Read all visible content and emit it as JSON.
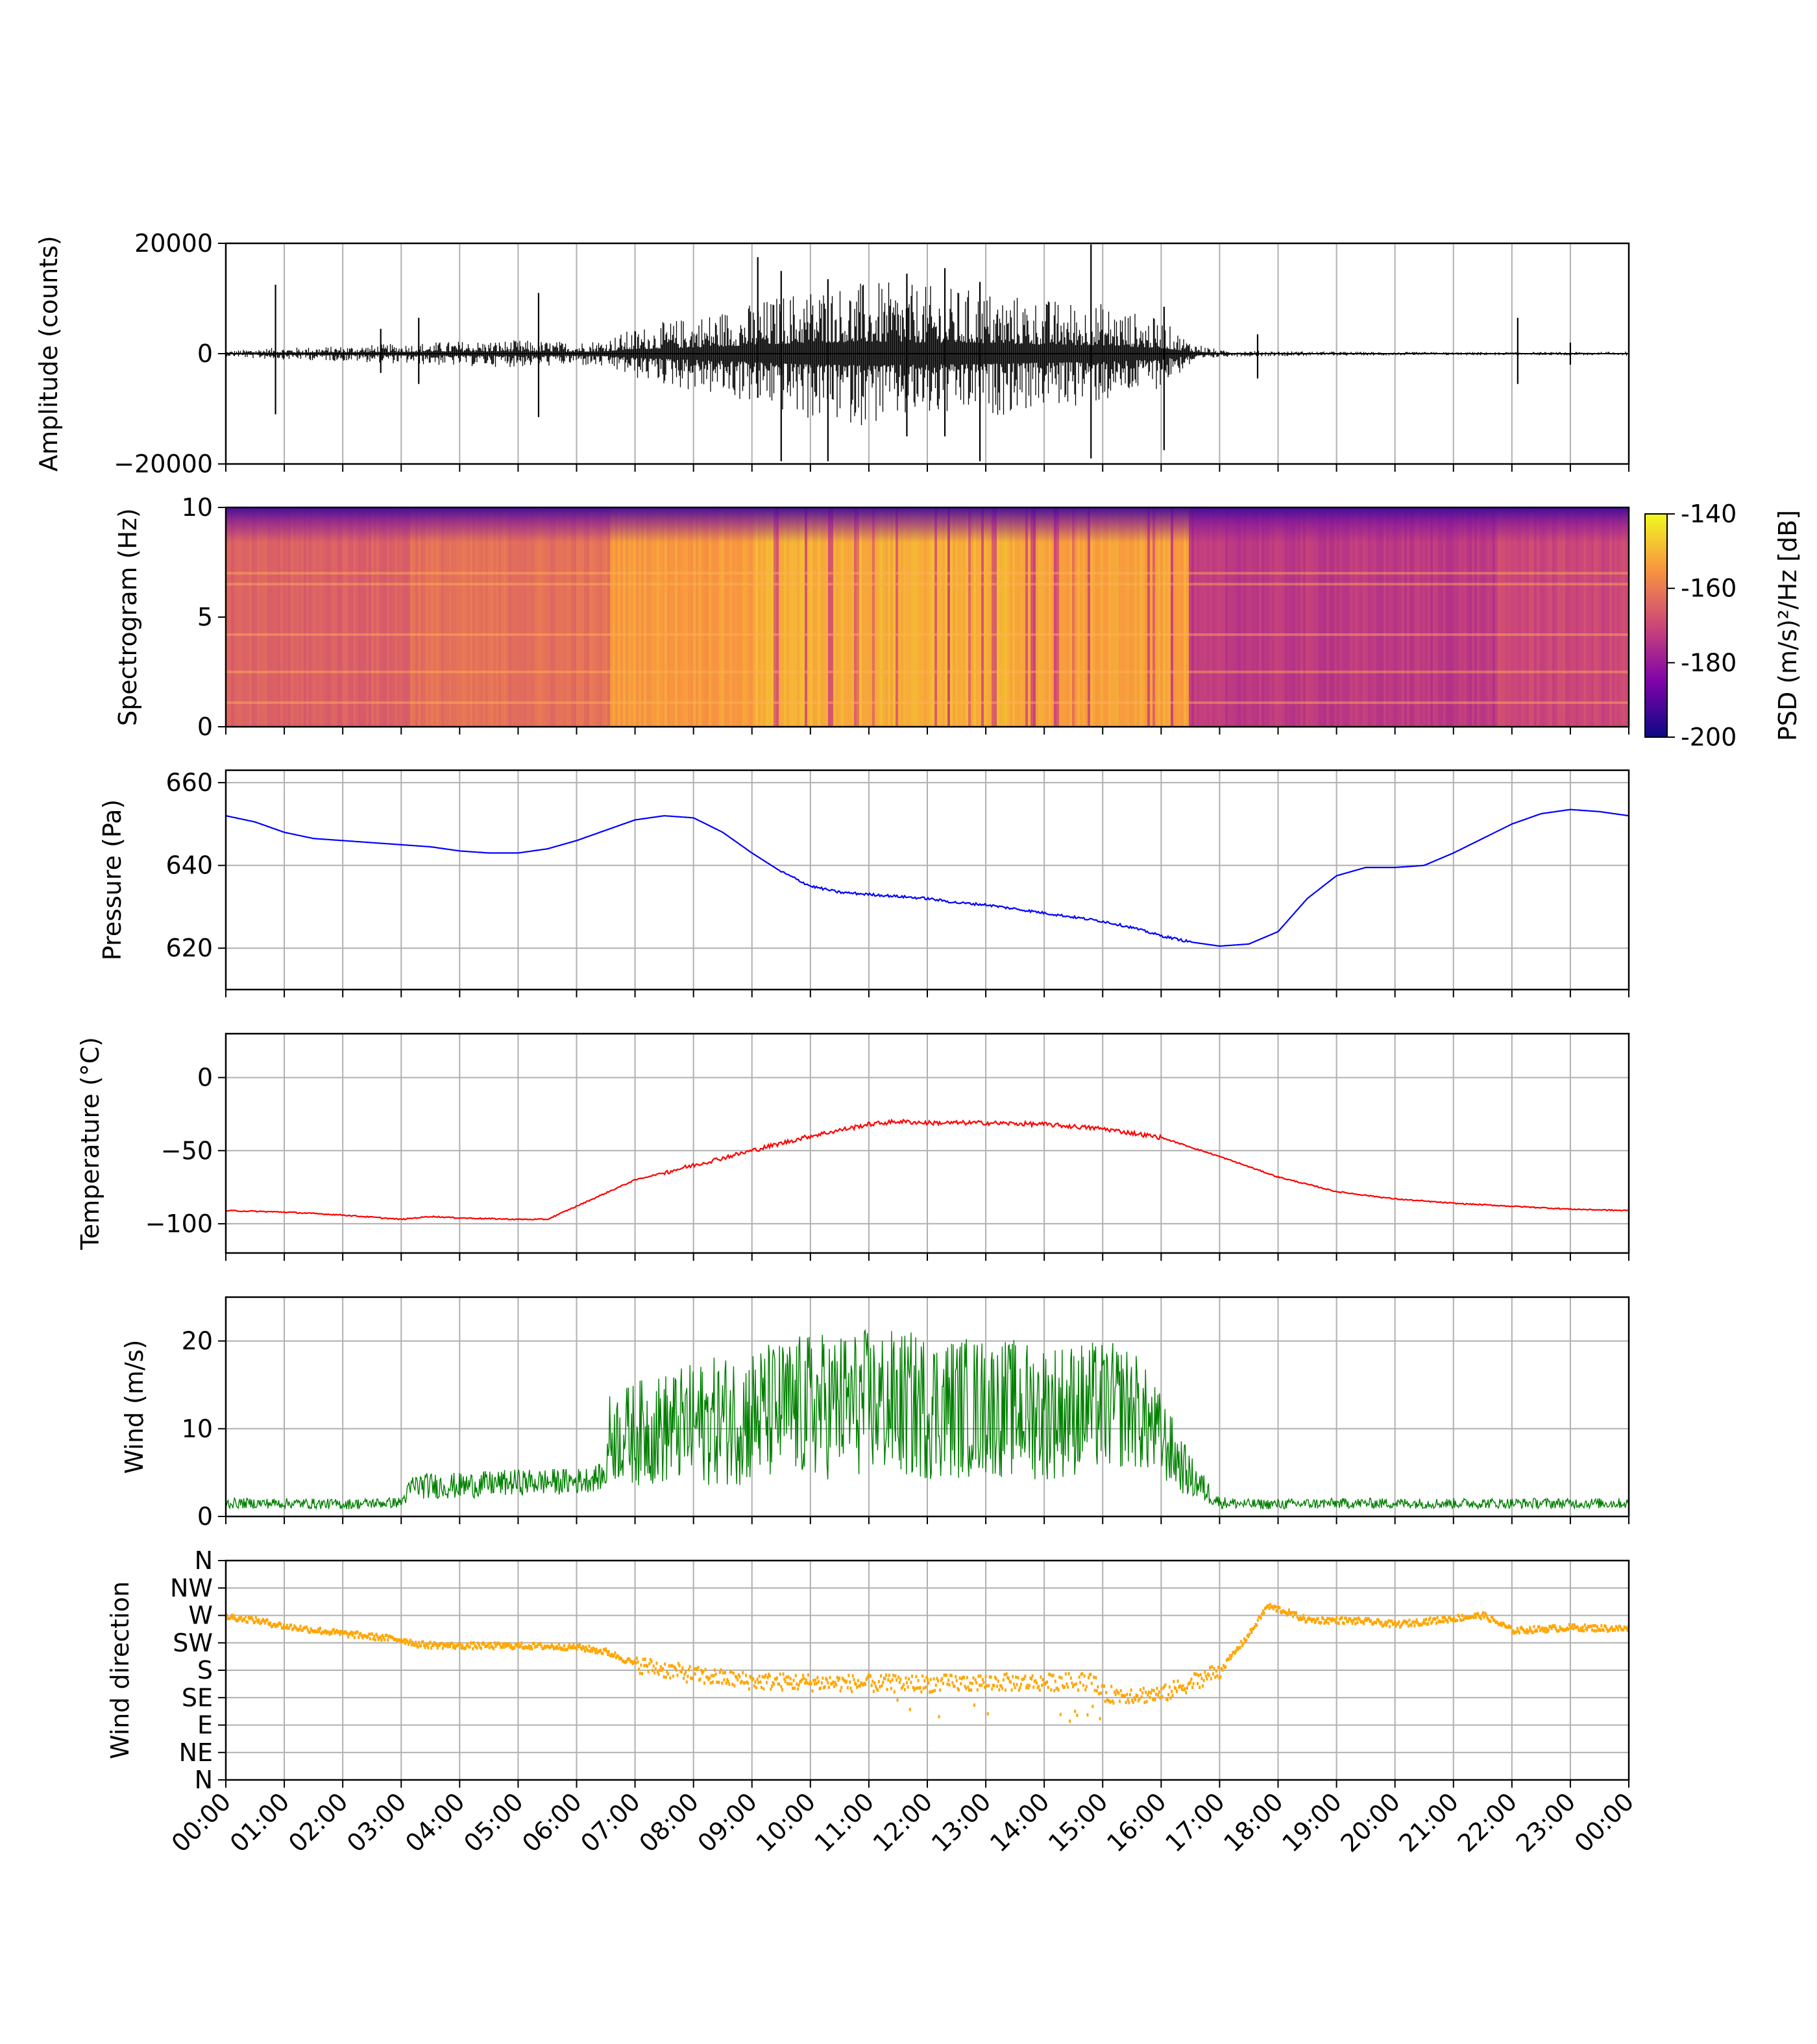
{
  "x_ticks": [
    "00:00",
    "01:00",
    "02:00",
    "03:00",
    "04:00",
    "05:00",
    "06:00",
    "07:00",
    "08:00",
    "09:00",
    "10:00",
    "11:00",
    "12:00",
    "13:00",
    "14:00",
    "15:00",
    "16:00",
    "17:00",
    "18:00",
    "19:00",
    "20:00",
    "21:00",
    "22:00",
    "23:00",
    "00:00"
  ],
  "colors": {
    "amplitude": "#000000",
    "pressure": "#0000ff",
    "temperature": "#ff0000",
    "wind": "#008000",
    "wind_direction": "#ffa500",
    "grid": "#b0b0b0"
  },
  "chart_data": [
    {
      "type": "line",
      "ylabel": "Amplitude (counts)",
      "ylim": [
        -20000,
        20000
      ],
      "yticks": [
        "20000",
        "0",
        "−20000"
      ],
      "grid": true,
      "envelope_hours": [
        0,
        0.5,
        1,
        2,
        3,
        4,
        5,
        6,
        6.5,
        7,
        8,
        9,
        10,
        11,
        12,
        13,
        14,
        15,
        16,
        16.5,
        17,
        18,
        19,
        20,
        21,
        22,
        23,
        24
      ],
      "envelope_counts": [
        300,
        600,
        700,
        900,
        1200,
        1500,
        1600,
        1400,
        1800,
        3000,
        4500,
        6000,
        8000,
        8500,
        8000,
        7500,
        6500,
        6000,
        4000,
        1500,
        400,
        300,
        250,
        200,
        200,
        200,
        200,
        250
      ],
      "spikes": [
        {
          "t": 0.85,
          "max": 12500,
          "min": -11000
        },
        {
          "t": 2.65,
          "max": 4500,
          "min": -3500
        },
        {
          "t": 3.3,
          "max": 6500,
          "min": -5500
        },
        {
          "t": 5.35,
          "max": 11000,
          "min": -11500
        },
        {
          "t": 9.1,
          "max": 17500,
          "min": -8000
        },
        {
          "t": 9.5,
          "max": 15000,
          "min": -19500
        },
        {
          "t": 10.3,
          "max": 13500,
          "min": -19500
        },
        {
          "t": 11.65,
          "max": 14500,
          "min": -15000
        },
        {
          "t": 12.3,
          "max": 15500,
          "min": -15000
        },
        {
          "t": 12.9,
          "max": 13000,
          "min": -19500
        },
        {
          "t": 14.8,
          "max": 19800,
          "min": -19000
        },
        {
          "t": 16.05,
          "max": 8500,
          "min": -17500
        },
        {
          "t": 17.65,
          "max": 3500,
          "min": -4500
        },
        {
          "t": 22.1,
          "max": 6500,
          "min": -5500
        },
        {
          "t": 23.0,
          "max": 2000,
          "min": -2000
        }
      ]
    },
    {
      "type": "heatmap",
      "ylabel": "Spectrogram (Hz)",
      "ylim": [
        0,
        10
      ],
      "yticks": [
        "10",
        "5",
        "0"
      ],
      "colorbar": {
        "label": "PSD (m/s)²/Hz [dB]",
        "range": [
          -200,
          -140
        ],
        "ticks": [
          "-140",
          "-160",
          "-180",
          "-200"
        ]
      },
      "segments": [
        {
          "start": 0.0,
          "end": 3.15,
          "level_db": -165
        },
        {
          "start": 3.15,
          "end": 6.55,
          "level_db": -162
        },
        {
          "start": 6.55,
          "end": 9.0,
          "level_db": -154
        },
        {
          "start": 9.0,
          "end": 13.5,
          "level_db": -151
        },
        {
          "start": 13.5,
          "end": 16.45,
          "level_db": -153
        },
        {
          "start": 16.45,
          "end": 21.75,
          "level_db": -173
        },
        {
          "start": 21.75,
          "end": 24.0,
          "level_db": -170
        }
      ],
      "bands_hz": [
        1.1,
        2.5,
        4.2,
        6.5,
        7.0
      ]
    },
    {
      "type": "line",
      "ylabel": "Pressure (Pa)",
      "ylim": [
        610,
        663
      ],
      "yticks": [
        "660",
        "640",
        "620"
      ],
      "grid": true,
      "x_hours": [
        0,
        0.5,
        1,
        1.5,
        2,
        2.5,
        3,
        3.5,
        4,
        4.5,
        5,
        5.5,
        6,
        6.5,
        7,
        7.5,
        8,
        8.5,
        9,
        9.5,
        10,
        10.5,
        11,
        11.5,
        12,
        12.5,
        13,
        13.5,
        14,
        14.5,
        15,
        15.5,
        16,
        16.5,
        17,
        17.5,
        18,
        18.5,
        19,
        19.5,
        20,
        20.5,
        21,
        21.5,
        22,
        22.5,
        23,
        23.5,
        24
      ],
      "y": [
        652,
        650.5,
        648,
        646.5,
        646,
        645.5,
        645,
        644.5,
        643.5,
        643,
        643,
        644,
        646,
        648.5,
        651,
        652,
        651.5,
        648,
        643,
        638.5,
        635,
        633.5,
        633,
        632.5,
        632,
        631,
        630.5,
        629.5,
        628.5,
        627.5,
        626.5,
        625,
        623,
        621.5,
        620.5,
        621,
        624,
        632,
        637.5,
        639.5,
        639.5,
        640,
        643,
        646.5,
        650,
        652.5,
        653.5,
        653,
        652
      ]
    },
    {
      "type": "line",
      "ylabel": "Temperature (°C)",
      "ylim": [
        -120,
        30
      ],
      "yticks": [
        "0",
        "−50",
        "−100"
      ],
      "grid": true,
      "x_hours": [
        0,
        1,
        2,
        3,
        3.5,
        4,
        5,
        5.5,
        6,
        7,
        8,
        9,
        10,
        11,
        11.5,
        12,
        13,
        14,
        15,
        16,
        17,
        18,
        19,
        20,
        21,
        22,
        23,
        24
      ],
      "y": [
        -91,
        -92,
        -94,
        -97,
        -95,
        -96,
        -97,
        -97,
        -88,
        -70,
        -60,
        -50,
        -40,
        -32,
        -30,
        -31,
        -31,
        -32,
        -35,
        -41,
        -54,
        -68,
        -78,
        -83,
        -86,
        -88,
        -90,
        -91
      ]
    },
    {
      "type": "line",
      "ylabel": "Wind (m/s)",
      "ylim": [
        0,
        25
      ],
      "yticks": [
        "20",
        "10",
        "0"
      ],
      "grid": true,
      "x_hours": [
        0,
        1,
        2,
        3,
        3.2,
        4,
        5,
        6,
        6.5,
        6.55,
        7,
        8,
        9,
        10,
        11,
        12,
        13,
        14,
        15,
        15.5,
        16,
        16.5,
        17,
        17.5,
        18,
        19,
        20,
        21,
        22,
        23,
        24
      ],
      "mean": [
        1.5,
        1.5,
        1.4,
        1.6,
        3.5,
        3.5,
        3.9,
        4.0,
        4.6,
        9.0,
        9.5,
        10.5,
        11.5,
        12.5,
        13.0,
        12.5,
        12.5,
        12.0,
        12.5,
        12.5,
        9.0,
        4.5,
        1.6,
        1.4,
        1.4,
        1.5,
        1.5,
        1.5,
        1.5,
        1.5,
        1.5
      ],
      "range": [
        0.6,
        0.6,
        0.6,
        0.6,
        1.5,
        1.5,
        1.5,
        1.5,
        1.5,
        5.0,
        6.0,
        7.0,
        8.0,
        8.5,
        8.5,
        8.5,
        8.0,
        8.0,
        7.5,
        7.0,
        5.0,
        2.5,
        0.7,
        0.6,
        0.6,
        0.6,
        0.6,
        0.6,
        0.6,
        0.6,
        0.6
      ]
    },
    {
      "type": "scatter",
      "ylabel": "Wind direction",
      "ylim": [
        0,
        360
      ],
      "ytick_values": [
        0,
        45,
        90,
        135,
        180,
        225,
        270,
        315,
        360
      ],
      "yticks": [
        "N",
        "NE",
        "E",
        "SE",
        "S",
        "SW",
        "W",
        "NW",
        "N"
      ],
      "grid": true,
      "x_hours": [
        0,
        0.5,
        1,
        2,
        3,
        3.3,
        4,
        5,
        6,
        6.5,
        7,
        8,
        9,
        10,
        11,
        12,
        13,
        14,
        14.8,
        15,
        16,
        16.5,
        17,
        17.5,
        17.8,
        18,
        18.5,
        19,
        19.5,
        20,
        21,
        21.5,
        22,
        23,
        24
      ],
      "y": [
        268,
        262,
        252,
        240,
        230,
        222,
        220,
        220,
        218,
        210,
        190,
        172,
        162,
        160,
        158,
        158,
        160,
        160,
        162,
        140,
        140,
        160,
        180,
        240,
        285,
        280,
        262,
        262,
        260,
        255,
        265,
        270,
        245,
        250,
        248
      ]
    }
  ]
}
